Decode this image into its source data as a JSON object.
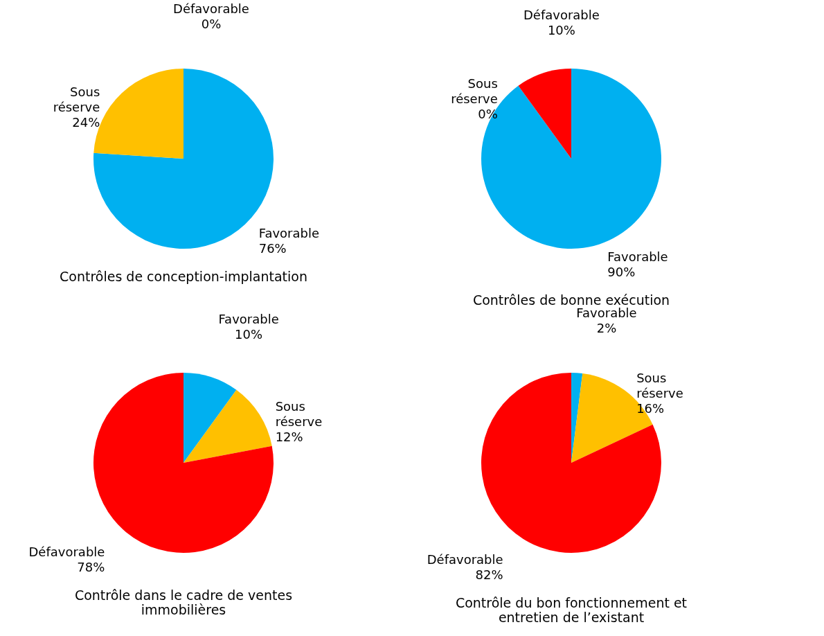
{
  "chart_data": [
    {
      "type": "pie",
      "title": "Contrôles de conception-implantation",
      "categories": [
        "Favorable",
        "Sous réserve",
        "Défavorable"
      ],
      "values": [
        76,
        24,
        0
      ],
      "colors": [
        "#00b0f0",
        "#ffc000",
        "#ff0000"
      ],
      "value_labels": [
        "76%",
        "24%",
        "0%"
      ],
      "legend": false
    },
    {
      "type": "pie",
      "title": "Contrôles de bonne exécution",
      "categories": [
        "Favorable",
        "Sous réserve",
        "Défavorable"
      ],
      "values": [
        90,
        0,
        10
      ],
      "colors": [
        "#00b0f0",
        "#ffc000",
        "#ff0000"
      ],
      "value_labels": [
        "90%",
        "0%",
        "10%"
      ],
      "legend": false
    },
    {
      "type": "pie",
      "title": "Contrôle dans le cadre de ventes immobilières",
      "categories": [
        "Favorable",
        "Sous réserve",
        "Défavorable"
      ],
      "values": [
        10,
        12,
        78
      ],
      "colors": [
        "#00b0f0",
        "#ffc000",
        "#ff0000"
      ],
      "value_labels": [
        "10%",
        "12%",
        "78%"
      ],
      "legend": false
    },
    {
      "type": "pie",
      "title": "Contrôle du bon fonctionnement et entretien de l’existant",
      "categories": [
        "Favorable",
        "Sous réserve",
        "Défavorable"
      ],
      "values": [
        2,
        16,
        82
      ],
      "colors": [
        "#00b0f0",
        "#ffc000",
        "#ff0000"
      ],
      "value_labels": [
        "2%",
        "16%",
        "82%"
      ],
      "legend": false
    }
  ]
}
